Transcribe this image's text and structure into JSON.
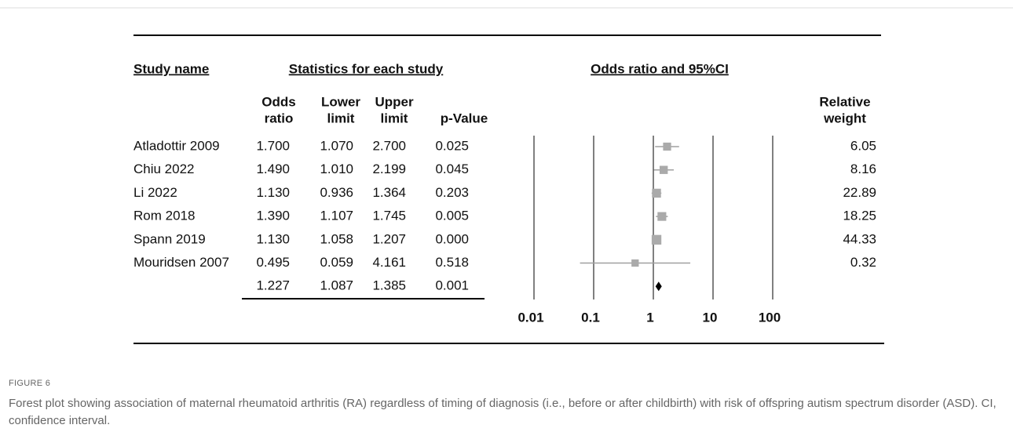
{
  "chart_data": {
    "type": "forest",
    "headers": {
      "study": "Study name",
      "stats": "Statistics for each study",
      "plot": "Odds ratio and 95%CI",
      "odds": [
        "Odds",
        "ratio"
      ],
      "lower": [
        "Lower",
        "limit"
      ],
      "upper": [
        "Upper",
        "limit"
      ],
      "p": "p-Value",
      "weight": [
        "Relative",
        "weight"
      ]
    },
    "categories": [
      "Atladottir 2009",
      "Chiu 2022",
      "Li 2022",
      "Rom 2018",
      "Spann 2019",
      "Mouridsen 2007",
      null
    ],
    "odds_ratio": {
      "values": [
        1.7,
        1.49,
        1.13,
        1.39,
        1.13,
        0.495,
        1.227
      ],
      "value_labels": [
        "1.700",
        "1.490",
        "1.130",
        "1.390",
        "1.130",
        "0.495",
        "1.227"
      ]
    },
    "lower": {
      "values": [
        1.07,
        1.01,
        0.936,
        1.107,
        1.058,
        0.059,
        1.087
      ],
      "value_labels": [
        "1.070",
        "1.010",
        "0.936",
        "1.107",
        "1.058",
        "0.059",
        "1.087"
      ]
    },
    "upper": {
      "values": [
        2.7,
        2.199,
        1.364,
        1.745,
        1.207,
        4.161,
        1.385
      ],
      "value_labels": [
        "2.700",
        "2.199",
        "1.364",
        "1.745",
        "1.207",
        "4.161",
        "1.385"
      ]
    },
    "p_value": {
      "values": [
        0.025,
        0.045,
        0.203,
        0.005,
        0,
        0.518,
        0.001
      ],
      "value_labels": [
        "0.025",
        "0.045",
        "0.203",
        "0.005",
        "0.000",
        "0.518",
        "0.001"
      ]
    },
    "weight": {
      "values": [
        6.05,
        8.16,
        22.89,
        18.25,
        44.33,
        0.32,
        null
      ]
    },
    "xlim": [
      0.01,
      100
    ],
    "xticks": [
      0.01,
      0.1,
      1,
      10,
      100
    ],
    "log": true,
    "grid": true,
    "marker_color": "#aaaaaa",
    "ci_color": "#a0a0a0",
    "summary_color": "#000000"
  },
  "figure": {
    "label": "FIGURE 6",
    "caption": "Forest plot showing association of maternal rheumatoid arthritis (RA) regardless of timing of diagnosis (i.e., before or after childbirth) with risk of offspring autism spectrum disorder (ASD). CI, confidence interval."
  }
}
